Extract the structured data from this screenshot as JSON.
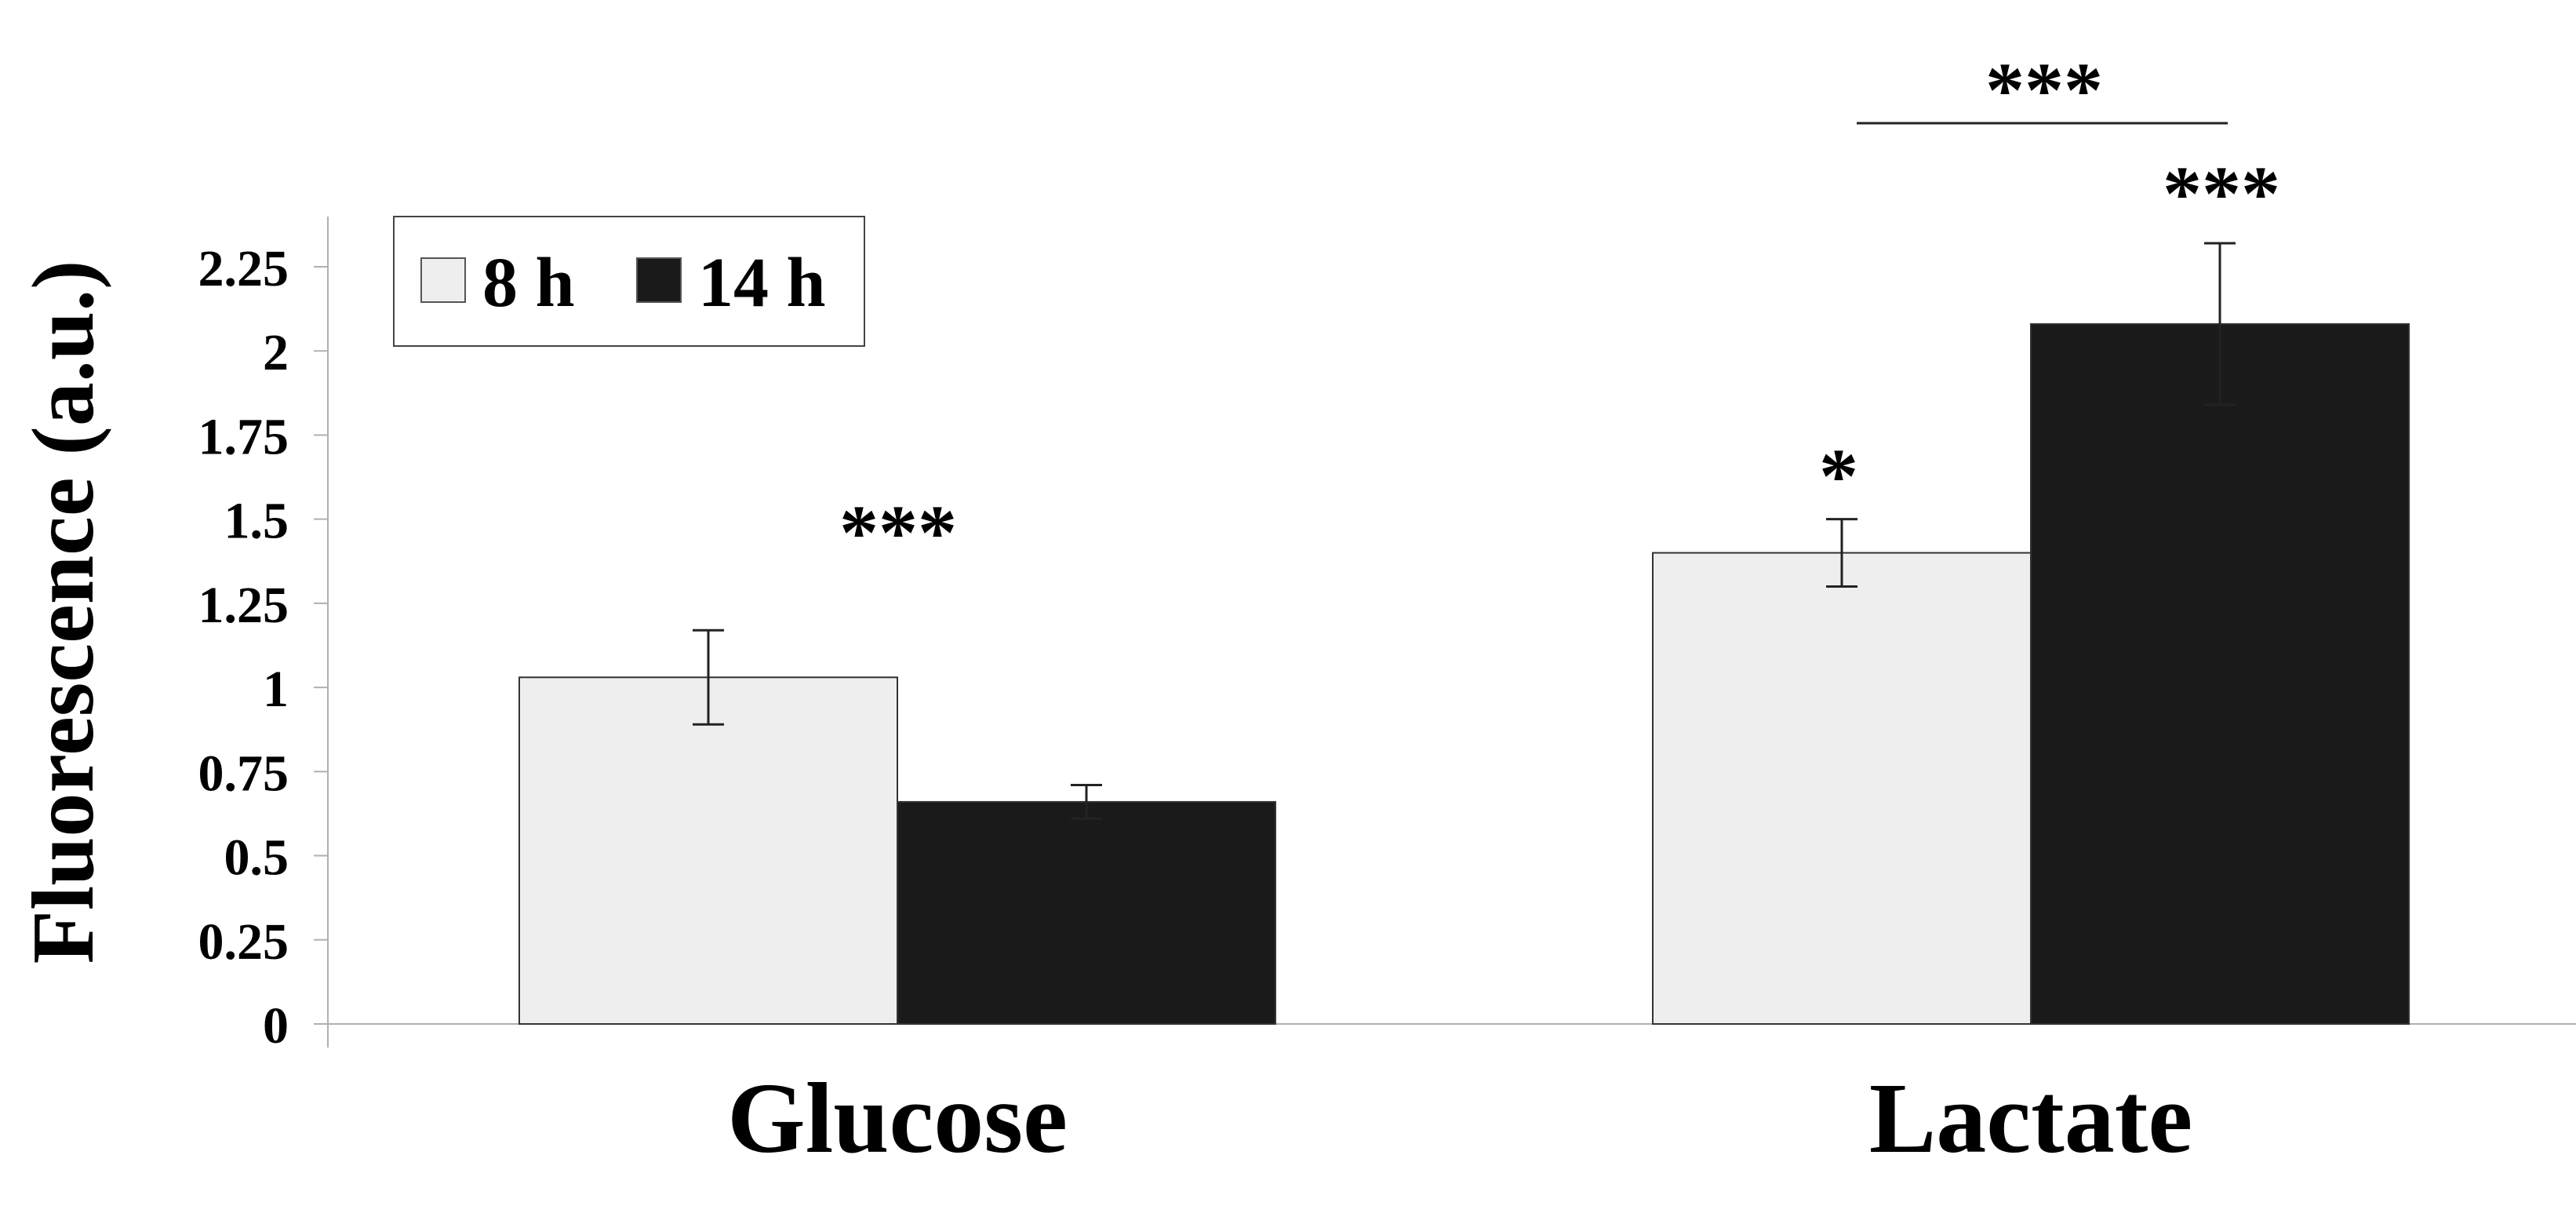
{
  "chart_data": {
    "type": "bar",
    "categories": [
      "Glucose",
      "Lactate"
    ],
    "ylabel": "Fluorescence (a.u.)",
    "xlabel": "",
    "ylim": [
      0,
      2.4
    ],
    "yticks": [
      0,
      0.25,
      0.5,
      0.75,
      1,
      1.25,
      1.5,
      1.75,
      2,
      2.25
    ],
    "ytick_labels": [
      "0",
      "0.25",
      "0.5",
      "0.75",
      "1",
      "1.25",
      "1.5",
      "1.75",
      "2",
      "2.25"
    ],
    "grid": false,
    "legend": {
      "placement": "top-left"
    },
    "series": [
      {
        "name": "8 h",
        "color": "#eeeeee",
        "values": [
          1.03,
          1.4
        ],
        "errors": [
          0.14,
          0.1
        ]
      },
      {
        "name": "14 h",
        "color": "#1a1a1a",
        "values": [
          0.66,
          2.08
        ],
        "errors": [
          0.05,
          0.24
        ]
      }
    ],
    "annotations": [
      {
        "text": "***",
        "category": "Glucose",
        "position": "above-group"
      },
      {
        "text": "*",
        "category": "Lactate",
        "series": "8 h",
        "position": "above-bar"
      },
      {
        "text": "***",
        "category": "Lactate",
        "series": "14 h",
        "position": "above-bar"
      },
      {
        "text": "***",
        "category": "Lactate",
        "position": "bracket-between-bars"
      }
    ]
  }
}
